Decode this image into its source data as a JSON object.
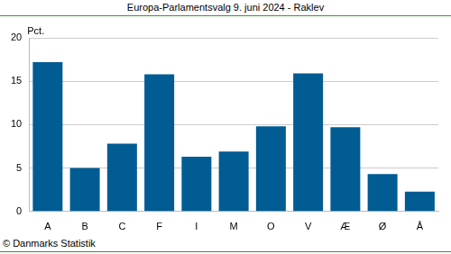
{
  "chart_data": {
    "type": "bar",
    "title": "Europa-Parlamentsvalg 9. juni 2024 - Raklev",
    "y_label": "Pct.",
    "footer": "© Danmarks Statistik",
    "categories": [
      "A",
      "B",
      "C",
      "F",
      "I",
      "M",
      "O",
      "V",
      "Æ",
      "Ø",
      "Å"
    ],
    "values": [
      17.2,
      5.0,
      7.8,
      15.8,
      6.3,
      6.9,
      9.8,
      15.9,
      9.7,
      4.3,
      2.3
    ],
    "color": "#005c93",
    "ylim": [
      0,
      20
    ],
    "yticks": [
      0,
      5,
      10,
      15,
      20
    ],
    "grid": true
  }
}
